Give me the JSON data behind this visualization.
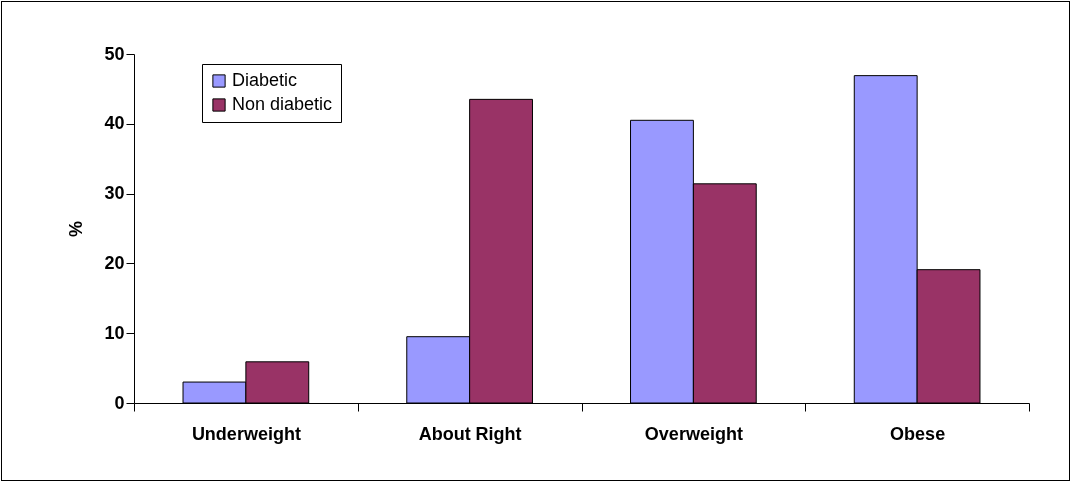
{
  "chart_data": {
    "type": "bar",
    "ylabel": "%",
    "categories": [
      "Underweight",
      "About Right",
      "Overweight",
      "Obese"
    ],
    "series": [
      {
        "name": "Diabetic",
        "color": "#9999ff",
        "values": [
          3.0,
          9.5,
          40.5,
          46.9
        ]
      },
      {
        "name": "Non diabetic",
        "color": "#993366",
        "values": [
          5.9,
          43.5,
          31.4,
          19.1
        ]
      }
    ],
    "ylim": [
      0,
      50
    ],
    "yticks": [
      0,
      10,
      20,
      30,
      40,
      50
    ],
    "grid": false,
    "legend": "top left"
  }
}
